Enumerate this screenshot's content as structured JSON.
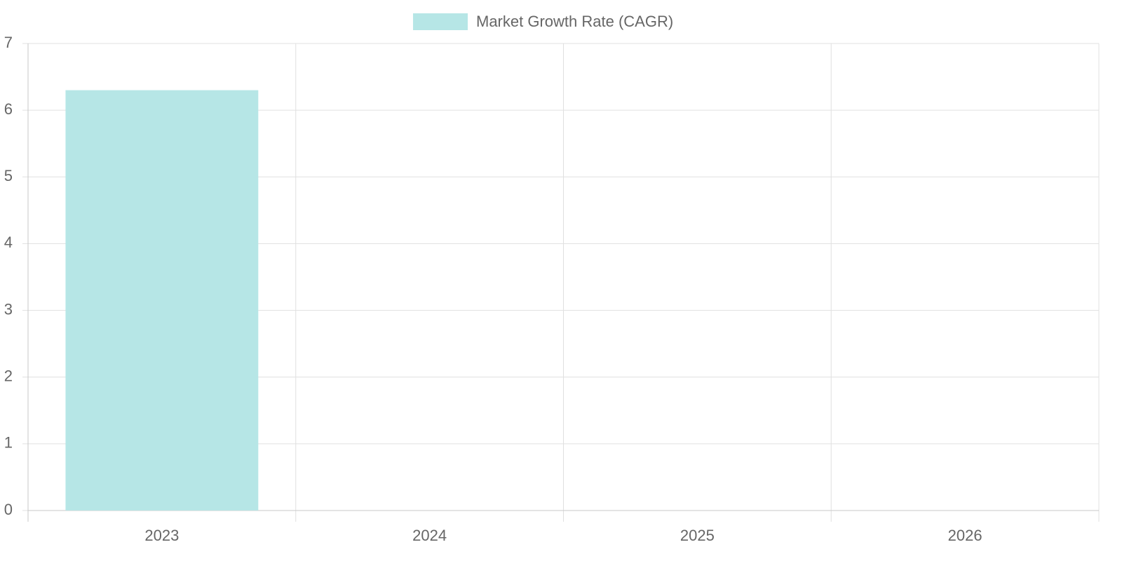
{
  "chart_data": {
    "type": "bar",
    "categories": [
      "2023",
      "2024",
      "2025",
      "2026"
    ],
    "series": [
      {
        "name": "Market Growth Rate (CAGR)",
        "color": "#b6e6e6",
        "values": [
          6.3,
          null,
          null,
          null
        ]
      }
    ],
    "ylim": [
      0,
      7
    ],
    "yticks": [
      0,
      1,
      2,
      3,
      4,
      5,
      6,
      7
    ],
    "grid": true,
    "legend": "top"
  }
}
